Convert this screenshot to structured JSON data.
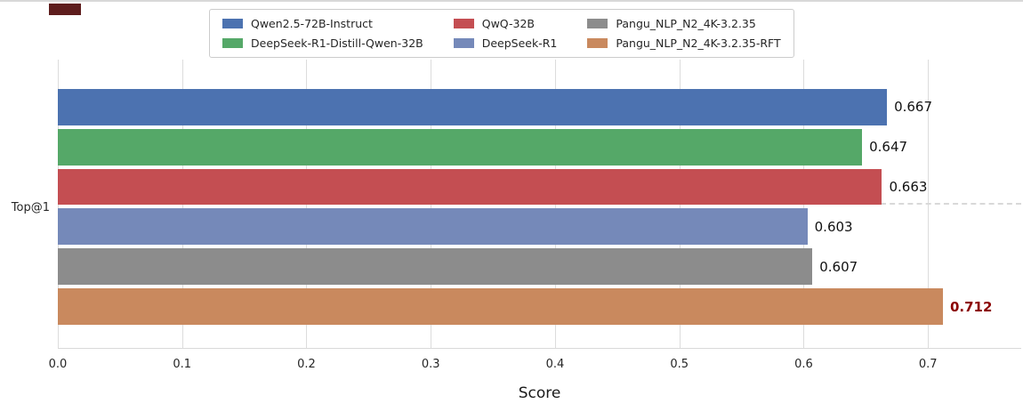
{
  "chart_data": {
    "type": "bar",
    "orientation": "horizontal",
    "title": "",
    "xlabel": "Score",
    "ylabel": "",
    "category": "Top@1",
    "xlim": [
      0,
      0.775
    ],
    "grid": "vertical",
    "category_tick_line": "dashed-gray",
    "xticks": [
      "0.0",
      "0.1",
      "0.2",
      "0.3",
      "0.4",
      "0.5",
      "0.6",
      "0.7"
    ],
    "series": [
      {
        "name": "Qwen2.5-72B-Instruct",
        "value": 0.667,
        "label": "0.667",
        "color": "#4c72b0",
        "highlight": false
      },
      {
        "name": "DeepSeek-R1-Distill-Qwen-32B",
        "value": 0.647,
        "label": "0.647",
        "color": "#55a868",
        "highlight": false
      },
      {
        "name": "QwQ-32B",
        "value": 0.663,
        "label": "0.663",
        "color": "#c44e52",
        "highlight": false
      },
      {
        "name": "DeepSeek-R1",
        "value": 0.603,
        "label": "0.603",
        "color": "#7589b9",
        "highlight": false
      },
      {
        "name": "Pangu_NLP_N2_4K-3.2.35",
        "value": 0.607,
        "label": "0.607",
        "color": "#8c8c8c",
        "highlight": false
      },
      {
        "name": "Pangu_NLP_N2_4K-3.2.35-RFT",
        "value": 0.712,
        "label": "0.712",
        "color": "#c9895e",
        "highlight": true
      }
    ],
    "legend": {
      "position": "top-center",
      "columns": 3,
      "items": [
        {
          "label": "Qwen2.5-72B-Instruct",
          "color": "#4c72b0"
        },
        {
          "label": "QwQ-32B",
          "color": "#c44e52"
        },
        {
          "label": "Pangu_NLP_N2_4K-3.2.35",
          "color": "#8c8c8c"
        },
        {
          "label": "DeepSeek-R1-Distill-Qwen-32B",
          "color": "#55a868"
        },
        {
          "label": "DeepSeek-R1",
          "color": "#7589b9"
        },
        {
          "label": "Pangu_NLP_N2_4K-3.2.35-RFT",
          "color": "#c9895e"
        }
      ]
    },
    "highlight_label_color": "#8b0000"
  }
}
